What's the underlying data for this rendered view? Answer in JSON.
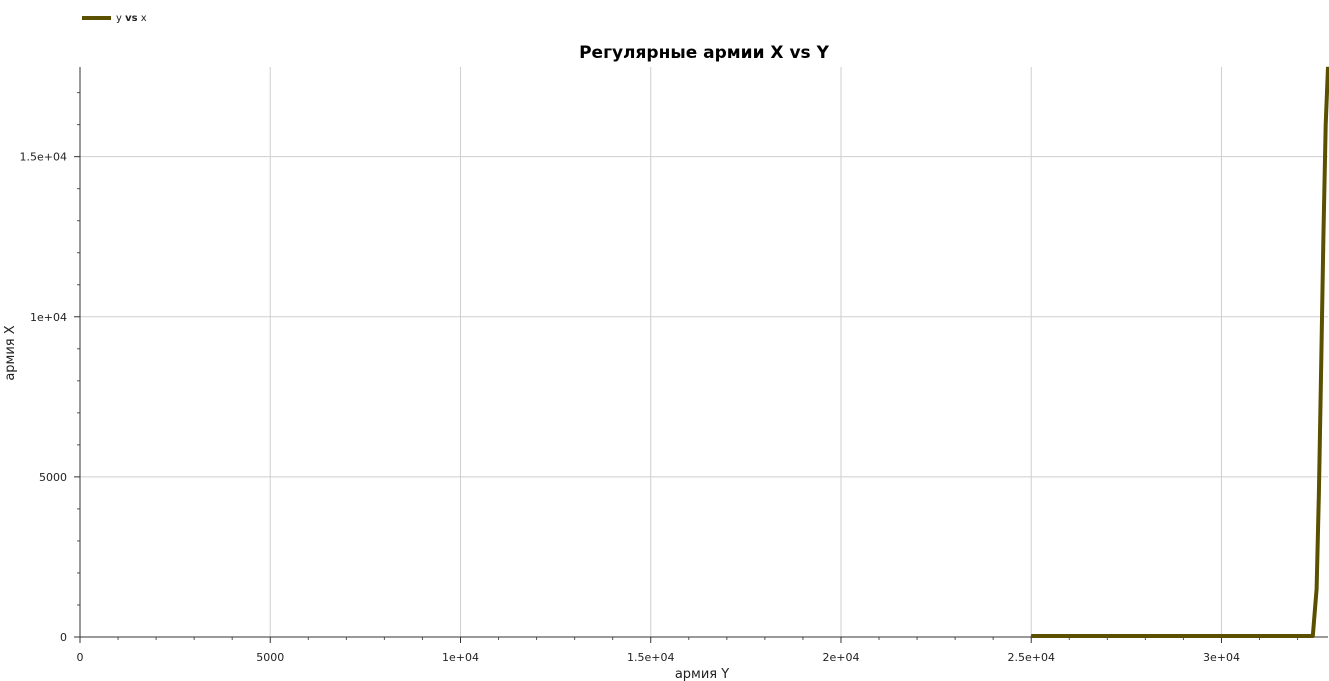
{
  "legend": {
    "entry_prefix": "y",
    "entry_vs": "vs",
    "entry_suffix": "x",
    "color": "#5a5000"
  },
  "chart_data": {
    "type": "line",
    "title": "Регулярные армии X vs Y",
    "xlabel": "армия Y",
    "ylabel": "армия X",
    "xlim": [
      0,
      32800
    ],
    "ylim": [
      0,
      17800
    ],
    "grid": true,
    "legend_position": "top-left",
    "x_ticks": [
      {
        "value": 0,
        "label": "0"
      },
      {
        "value": 5000,
        "label": "5000"
      },
      {
        "value": 10000,
        "label": "1e+04"
      },
      {
        "value": 15000,
        "label": "1.5e+04"
      },
      {
        "value": 20000,
        "label": "2e+04"
      },
      {
        "value": 25000,
        "label": "2.5e+04"
      },
      {
        "value": 30000,
        "label": "3e+04"
      }
    ],
    "y_ticks": [
      {
        "value": 0,
        "label": "0"
      },
      {
        "value": 5000,
        "label": "5000"
      },
      {
        "value": 10000,
        "label": "1e+04"
      },
      {
        "value": 15000,
        "label": "1.5e+04"
      }
    ],
    "series": [
      {
        "name": "y vs x",
        "color": "#5a5000",
        "x": [
          25000,
          27000,
          29000,
          31000,
          32400,
          32500,
          32560,
          32620,
          32680,
          32740,
          32800
        ],
        "y": [
          30,
          30,
          30,
          30,
          30,
          1500,
          4500,
          8500,
          12500,
          16000,
          17800
        ]
      }
    ]
  }
}
